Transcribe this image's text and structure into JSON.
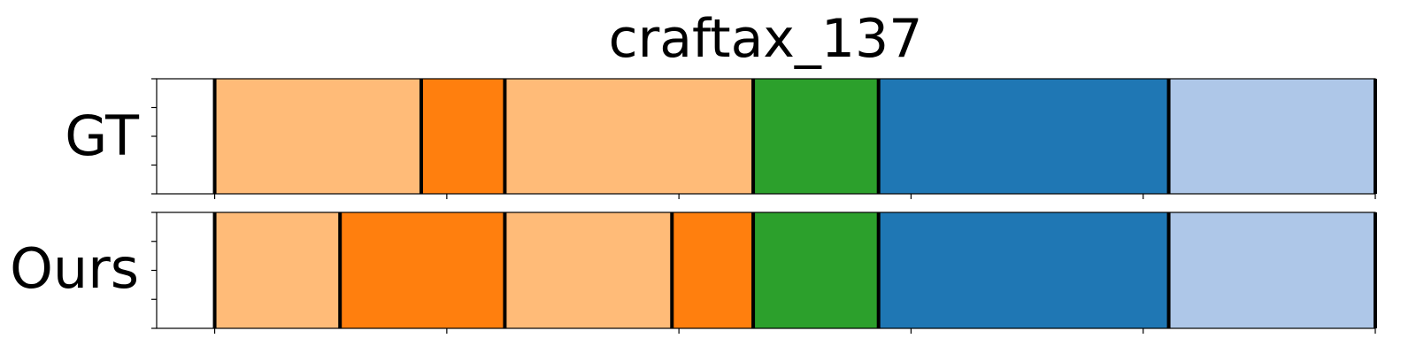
{
  "chart_data": {
    "type": "segmentation",
    "title": "craftax_137",
    "xlim": [
      -25,
      500
    ],
    "rows": [
      {
        "label": "GT",
        "segments": [
          {
            "start": 0,
            "end": 89,
            "color": "#ffbb78"
          },
          {
            "start": 89,
            "end": 125,
            "color": "#ff7f0e"
          },
          {
            "start": 125,
            "end": 232,
            "color": "#ffbb78"
          },
          {
            "start": 232,
            "end": 286,
            "color": "#2ca02c"
          },
          {
            "start": 286,
            "end": 411,
            "color": "#1f77b4"
          },
          {
            "start": 411,
            "end": 500,
            "color": "#aec7e8"
          }
        ]
      },
      {
        "label": "Ours",
        "segments": [
          {
            "start": 0,
            "end": 54,
            "color": "#ffbb78"
          },
          {
            "start": 54,
            "end": 125,
            "color": "#ff7f0e"
          },
          {
            "start": 125,
            "end": 197,
            "color": "#ffbb78"
          },
          {
            "start": 197,
            "end": 232,
            "color": "#ff7f0e"
          },
          {
            "start": 232,
            "end": 286,
            "color": "#2ca02c"
          },
          {
            "start": 286,
            "end": 411,
            "color": "#1f77b4"
          },
          {
            "start": 411,
            "end": 500,
            "color": "#aec7e8"
          }
        ]
      }
    ],
    "x_ticks": [
      0,
      100,
      200,
      300,
      400,
      500
    ],
    "x_tick_labels_shown": false,
    "y_tick_labels_shown": false,
    "grid": false,
    "boundary_color": "#000000"
  }
}
